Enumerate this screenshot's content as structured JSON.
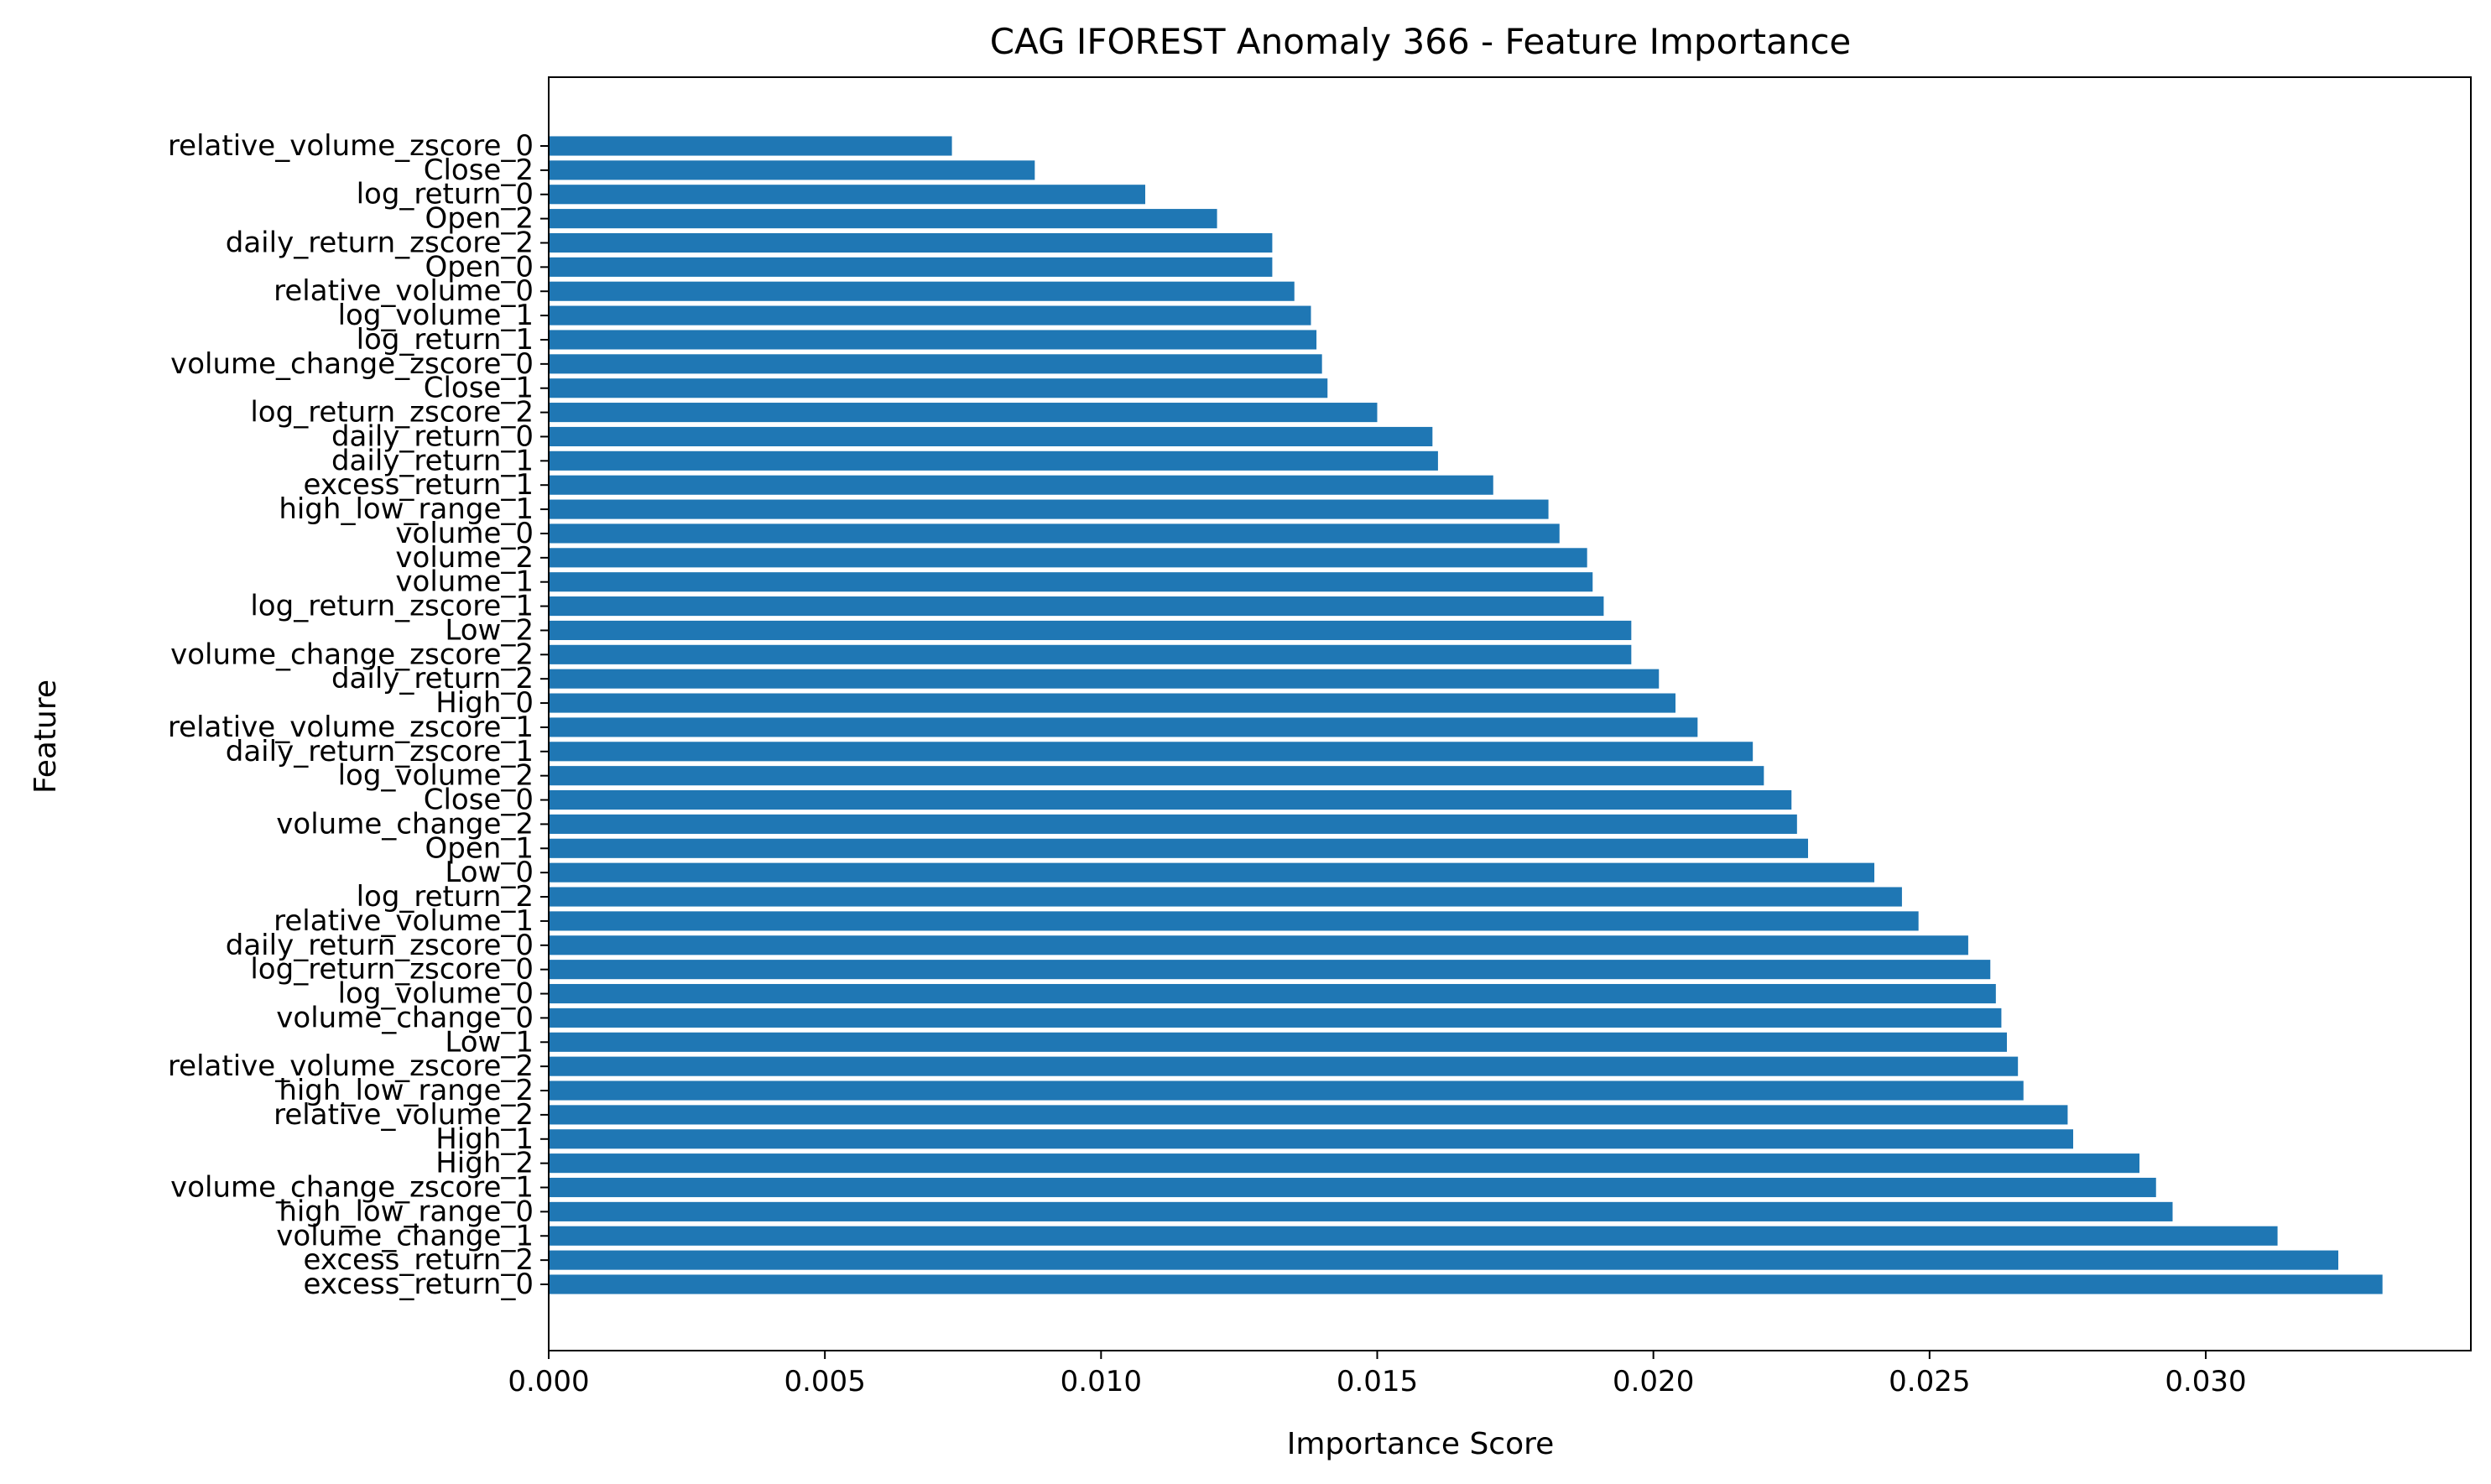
{
  "colors": {
    "bar": "#1f77b4",
    "axis": "#000000",
    "background": "#ffffff"
  },
  "chart_data": {
    "type": "bar",
    "orientation": "horizontal",
    "title": "CAG IFOREST Anomaly 366 - Feature Importance",
    "xlabel": "Importance Score",
    "ylabel": "Feature",
    "xlim": [
      0.0,
      0.0348
    ],
    "xticks": [
      0.0,
      0.005,
      0.01,
      0.015,
      0.02,
      0.025,
      0.03
    ],
    "xtick_labels": [
      "0.000",
      "0.005",
      "0.010",
      "0.015",
      "0.020",
      "0.025",
      "0.030"
    ],
    "grid": false,
    "legend": "none",
    "categories": [
      "relative_volume_zscore_0",
      "Close_2",
      "log_return_0",
      "Open_2",
      "daily_return_zscore_2",
      "Open_0",
      "relative_volume_0",
      "log_volume_1",
      "log_return_1",
      "volume_change_zscore_0",
      "Close_1",
      "log_return_zscore_2",
      "daily_return_0",
      "daily_return_1",
      "excess_return_1",
      "high_low_range_1",
      "volume_0",
      "volume_2",
      "volume_1",
      "log_return_zscore_1",
      "Low_2",
      "volume_change_zscore_2",
      "daily_return_2",
      "High_0",
      "relative_volume_zscore_1",
      "daily_return_zscore_1",
      "log_volume_2",
      "Close_0",
      "volume_change_2",
      "Open_1",
      "Low_0",
      "log_return_2",
      "relative_volume_1",
      "daily_return_zscore_0",
      "log_return_zscore_0",
      "log_volume_0",
      "volume_change_0",
      "Low_1",
      "relative_volume_zscore_2",
      "high_low_range_2",
      "relative_volume_2",
      "High_1",
      "High_2",
      "volume_change_zscore_1",
      "high_low_range_0",
      "volume_change_1",
      "excess_return_2",
      "excess_return_0"
    ],
    "values": [
      0.0073,
      0.0088,
      0.0108,
      0.0121,
      0.0131,
      0.0131,
      0.0135,
      0.0138,
      0.0139,
      0.014,
      0.0141,
      0.015,
      0.016,
      0.0161,
      0.0171,
      0.0181,
      0.0183,
      0.0188,
      0.0189,
      0.0191,
      0.0196,
      0.0196,
      0.0201,
      0.0204,
      0.0208,
      0.0218,
      0.022,
      0.0225,
      0.0226,
      0.0228,
      0.024,
      0.0245,
      0.0248,
      0.0257,
      0.0261,
      0.0262,
      0.0263,
      0.0264,
      0.0266,
      0.0267,
      0.0275,
      0.0276,
      0.0288,
      0.0291,
      0.0294,
      0.0313,
      0.0324,
      0.0332
    ]
  }
}
